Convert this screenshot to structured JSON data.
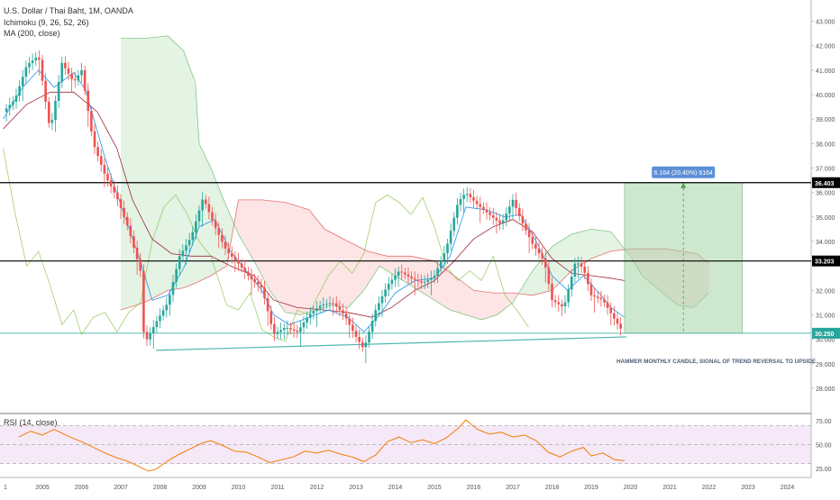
{
  "legend": {
    "symbol": "U.S. Dollar / Thai Baht, 1M, OANDA",
    "ichimoku": "Ichimoku (9, 26, 52, 26)",
    "ma": "MA (200, close)"
  },
  "rsi_legend": "RSI (14, close)",
  "annotations": {
    "measure_label": "6.164 (20.40%) 6164",
    "note": "HAMMER MONTHLY CANDLE, SIGNAL OF TREND REVERSAL TO UPSIDE"
  },
  "colors": {
    "up": "#26a69a",
    "down": "#ef5350",
    "rsi_line": "#f57c00",
    "rsi_band": "#e1bee7",
    "target_box": "#a5d6a7",
    "measure_badge": "#5b8fd6",
    "level_badge": "#000000",
    "support_line": "#4db6ac"
  },
  "chart_data": [
    {
      "type": "candlestick",
      "title": "U.S. Dollar / Thai Baht, 1M, OANDA",
      "x_ticks": [
        "1",
        "2005",
        "2006",
        "2007",
        "2008",
        "2009",
        "2010",
        "2011",
        "2012",
        "2013",
        "2014",
        "2015",
        "2016",
        "2017",
        "2018",
        "2019",
        "2020",
        "2021",
        "2022",
        "2023",
        "2024"
      ],
      "y_ticks": [
        "43.000",
        "42.000",
        "41.000",
        "40.000",
        "39.000",
        "38.000",
        "37.000",
        "36.000",
        "35.000",
        "34.000",
        "32.000",
        "31.000",
        "30.000",
        "29.000",
        "28.000"
      ],
      "ylim": [
        27.3,
        43.5
      ],
      "horizontal_levels": [
        {
          "label": "36.403",
          "value": 36.403,
          "color": "#000000"
        },
        {
          "label": "33.203",
          "value": 33.203,
          "color": "#000000"
        },
        {
          "label": "30.250",
          "value": 30.25,
          "color": "#26a69a"
        }
      ],
      "support_trendline": [
        {
          "year": 2007.9,
          "price": 29.55
        },
        {
          "year": 2019.9,
          "price": 30.1
        }
      ],
      "price_path": [
        [
          2004.0,
          39.3
        ],
        [
          2004.3,
          39.8
        ],
        [
          2004.6,
          41.2
        ],
        [
          2004.9,
          41.6
        ],
        [
          2005.2,
          38.5
        ],
        [
          2005.5,
          41.3
        ],
        [
          2005.8,
          40.5
        ],
        [
          2006.0,
          41.0
        ],
        [
          2006.3,
          38.0
        ],
        [
          2006.6,
          36.7
        ],
        [
          2006.9,
          35.8
        ],
        [
          2007.2,
          34.5
        ],
        [
          2007.5,
          32.8
        ],
        [
          2007.6,
          29.8
        ],
        [
          2007.9,
          30.7
        ],
        [
          2008.2,
          31.5
        ],
        [
          2008.5,
          33.4
        ],
        [
          2008.8,
          34.2
        ],
        [
          2009.1,
          35.8
        ],
        [
          2009.4,
          34.6
        ],
        [
          2009.7,
          33.6
        ],
        [
          2010.0,
          33.1
        ],
        [
          2010.3,
          32.5
        ],
        [
          2010.6,
          32.1
        ],
        [
          2010.9,
          30.2
        ],
        [
          2011.2,
          30.5
        ],
        [
          2011.5,
          30.3
        ],
        [
          2011.8,
          31.0
        ],
        [
          2012.1,
          31.4
        ],
        [
          2012.4,
          31.5
        ],
        [
          2012.7,
          31.0
        ],
        [
          2013.0,
          30.1
        ],
        [
          2013.2,
          29.6
        ],
        [
          2013.5,
          31.2
        ],
        [
          2013.8,
          32.2
        ],
        [
          2014.1,
          32.8
        ],
        [
          2014.4,
          32.5
        ],
        [
          2014.7,
          32.3
        ],
        [
          2015.0,
          32.6
        ],
        [
          2015.3,
          33.7
        ],
        [
          2015.6,
          35.6
        ],
        [
          2015.8,
          36.0
        ],
        [
          2016.1,
          35.5
        ],
        [
          2016.4,
          35.1
        ],
        [
          2016.7,
          34.7
        ],
        [
          2017.0,
          35.7
        ],
        [
          2017.2,
          34.9
        ],
        [
          2017.5,
          33.9
        ],
        [
          2017.8,
          33.2
        ],
        [
          2018.0,
          31.6
        ],
        [
          2018.3,
          31.3
        ],
        [
          2018.6,
          33.2
        ],
        [
          2018.8,
          32.9
        ],
        [
          2019.0,
          31.8
        ],
        [
          2019.3,
          31.6
        ],
        [
          2019.6,
          30.8
        ],
        [
          2019.83,
          30.25
        ]
      ],
      "tenkan": [
        [
          2004.0,
          39.0
        ],
        [
          2004.5,
          40.3
        ],
        [
          2004.9,
          41.0
        ],
        [
          2005.3,
          40.3
        ],
        [
          2005.8,
          40.9
        ],
        [
          2006.1,
          40.2
        ],
        [
          2006.6,
          37.4
        ],
        [
          2007.0,
          35.5
        ],
        [
          2007.5,
          33.2
        ],
        [
          2007.8,
          31.6
        ],
        [
          2008.2,
          31.8
        ],
        [
          2008.6,
          32.9
        ],
        [
          2009.0,
          34.6
        ],
        [
          2009.4,
          34.9
        ],
        [
          2009.8,
          33.6
        ],
        [
          2010.2,
          32.8
        ],
        [
          2010.6,
          32.0
        ],
        [
          2010.9,
          31.0
        ],
        [
          2011.3,
          30.6
        ],
        [
          2011.8,
          30.9
        ],
        [
          2012.3,
          31.2
        ],
        [
          2012.8,
          30.9
        ],
        [
          2013.2,
          30.3
        ],
        [
          2013.6,
          31.0
        ],
        [
          2014.0,
          31.9
        ],
        [
          2014.5,
          32.4
        ],
        [
          2015.0,
          32.5
        ],
        [
          2015.4,
          33.4
        ],
        [
          2015.8,
          35.4
        ],
        [
          2016.3,
          35.3
        ],
        [
          2016.8,
          35.0
        ],
        [
          2017.2,
          35.1
        ],
        [
          2017.6,
          34.0
        ],
        [
          2018.0,
          32.6
        ],
        [
          2018.4,
          32.0
        ],
        [
          2018.8,
          32.6
        ],
        [
          2019.2,
          31.9
        ],
        [
          2019.5,
          31.3
        ],
        [
          2019.85,
          30.9
        ]
      ],
      "kijun": [
        [
          2004.0,
          38.6
        ],
        [
          2004.6,
          39.6
        ],
        [
          2005.2,
          40.1
        ],
        [
          2005.8,
          40.1
        ],
        [
          2006.4,
          39.3
        ],
        [
          2006.9,
          37.8
        ],
        [
          2007.3,
          35.7
        ],
        [
          2007.8,
          34.1
        ],
        [
          2008.3,
          33.5
        ],
        [
          2008.8,
          33.4
        ],
        [
          2009.3,
          33.4
        ],
        [
          2009.8,
          33.0
        ],
        [
          2010.4,
          32.6
        ],
        [
          2010.9,
          31.6
        ],
        [
          2011.5,
          31.3
        ],
        [
          2012.2,
          31.2
        ],
        [
          2012.8,
          31.1
        ],
        [
          2013.4,
          30.9
        ],
        [
          2013.9,
          31.3
        ],
        [
          2014.5,
          32.0
        ],
        [
          2015.0,
          32.4
        ],
        [
          2015.5,
          33.2
        ],
        [
          2016.0,
          34.1
        ],
        [
          2016.5,
          34.6
        ],
        [
          2017.0,
          34.9
        ],
        [
          2017.5,
          34.4
        ],
        [
          2018.0,
          33.3
        ],
        [
          2018.5,
          32.7
        ],
        [
          2019.0,
          32.6
        ],
        [
          2019.5,
          32.5
        ],
        [
          2019.85,
          32.4
        ]
      ],
      "chikou": [
        [
          2004.0,
          37.8
        ],
        [
          2004.3,
          35.2
        ],
        [
          2004.6,
          33.0
        ],
        [
          2004.9,
          33.6
        ],
        [
          2005.2,
          32.2
        ],
        [
          2005.5,
          30.6
        ],
        [
          2005.8,
          31.2
        ],
        [
          2006.0,
          30.2
        ],
        [
          2006.3,
          30.9
        ],
        [
          2006.6,
          31.1
        ],
        [
          2006.9,
          30.3
        ],
        [
          2007.2,
          31.1
        ],
        [
          2007.5,
          31.5
        ],
        [
          2007.8,
          34.0
        ],
        [
          2008.1,
          35.4
        ],
        [
          2008.4,
          35.9
        ],
        [
          2008.7,
          35.1
        ],
        [
          2009.0,
          34.0
        ],
        [
          2009.3,
          33.4
        ],
        [
          2009.7,
          31.4
        ],
        [
          2010.0,
          31.2
        ],
        [
          2010.3,
          31.9
        ],
        [
          2010.6,
          30.4
        ],
        [
          2010.9,
          30.1
        ],
        [
          2011.2,
          29.9
        ],
        [
          2011.5,
          31.2
        ],
        [
          2011.8,
          31.0
        ],
        [
          2012.0,
          31.7
        ],
        [
          2012.3,
          32.6
        ],
        [
          2012.6,
          33.2
        ],
        [
          2012.9,
          32.7
        ],
        [
          2013.2,
          33.5
        ],
        [
          2013.5,
          35.6
        ],
        [
          2013.8,
          35.9
        ],
        [
          2014.1,
          35.6
        ],
        [
          2014.4,
          35.1
        ],
        [
          2014.7,
          35.8
        ],
        [
          2015.0,
          34.6
        ],
        [
          2015.3,
          33.0
        ],
        [
          2015.6,
          32.4
        ],
        [
          2015.9,
          32.8
        ],
        [
          2016.2,
          32.4
        ],
        [
          2016.5,
          33.4
        ],
        [
          2016.8,
          31.8
        ],
        [
          2017.1,
          31.2
        ],
        [
          2017.4,
          30.5
        ]
      ],
      "cloud_span_a": [
        [
          2007.0,
          42.3
        ],
        [
          2007.6,
          42.3
        ],
        [
          2008.2,
          42.4
        ],
        [
          2008.6,
          41.8
        ],
        [
          2008.9,
          40.5
        ],
        [
          2009.0,
          38.0
        ],
        [
          2009.3,
          37.0
        ],
        [
          2009.6,
          35.8
        ],
        [
          2010.0,
          34.3
        ],
        [
          2010.4,
          33.2
        ],
        [
          2010.8,
          32.0
        ],
        [
          2011.2,
          31.1
        ],
        [
          2011.6,
          31.0
        ],
        [
          2012.0,
          31.2
        ],
        [
          2012.4,
          31.4
        ],
        [
          2012.8,
          31.3
        ],
        [
          2013.2,
          32.0
        ],
        [
          2013.6,
          33.0
        ],
        [
          2014.0,
          32.6
        ],
        [
          2014.5,
          32.1
        ],
        [
          2015.0,
          31.6
        ],
        [
          2015.4,
          31.2
        ],
        [
          2015.8,
          31.0
        ],
        [
          2016.2,
          30.8
        ],
        [
          2016.6,
          31.0
        ],
        [
          2017.0,
          31.5
        ],
        [
          2017.5,
          32.8
        ],
        [
          2018.0,
          33.8
        ],
        [
          2018.5,
          34.3
        ],
        [
          2019.0,
          34.5
        ],
        [
          2019.5,
          34.4
        ],
        [
          2020.0,
          33.4
        ],
        [
          2020.3,
          32.6
        ],
        [
          2020.6,
          32.2
        ],
        [
          2020.9,
          31.8
        ],
        [
          2021.2,
          31.4
        ],
        [
          2021.6,
          31.3
        ],
        [
          2022.0,
          31.9
        ]
      ],
      "cloud_span_b": [
        [
          2007.0,
          31.2
        ],
        [
          2007.6,
          31.5
        ],
        [
          2008.2,
          32.0
        ],
        [
          2008.6,
          32.1
        ],
        [
          2008.9,
          32.3
        ],
        [
          2009.3,
          32.6
        ],
        [
          2009.7,
          33.0
        ],
        [
          2010.0,
          35.7
        ],
        [
          2010.6,
          35.7
        ],
        [
          2011.2,
          35.6
        ],
        [
          2011.8,
          35.3
        ],
        [
          2012.2,
          34.5
        ],
        [
          2012.8,
          34.0
        ],
        [
          2013.3,
          33.6
        ],
        [
          2013.8,
          33.4
        ],
        [
          2014.4,
          33.4
        ],
        [
          2015.0,
          33.2
        ],
        [
          2015.5,
          32.6
        ],
        [
          2016.0,
          32.0
        ],
        [
          2016.5,
          31.9
        ],
        [
          2017.0,
          31.9
        ],
        [
          2017.5,
          31.8
        ],
        [
          2018.0,
          32.0
        ],
        [
          2018.5,
          32.8
        ],
        [
          2019.0,
          33.3
        ],
        [
          2019.5,
          33.6
        ],
        [
          2020.0,
          33.7
        ],
        [
          2020.5,
          33.7
        ],
        [
          2020.9,
          33.7
        ],
        [
          2021.3,
          33.6
        ],
        [
          2021.7,
          33.5
        ],
        [
          2022.0,
          33.1
        ]
      ],
      "target_box": {
        "x_start": 2019.85,
        "x_end": 2022.85,
        "y_low": 30.25,
        "y_high": 36.403
      }
    },
    {
      "type": "line",
      "title": "RSI (14, close)",
      "ylim": [
        21,
        78
      ],
      "y_ticks": [
        "75.00",
        "50.00",
        "25.00"
      ],
      "bands": {
        "upper": 70,
        "mid": 50,
        "lower": 30
      },
      "series": [
        {
          "name": "RSI (14, close)",
          "points": [
            [
              2004.4,
              58
            ],
            [
              2004.7,
              64
            ],
            [
              2005.0,
              60
            ],
            [
              2005.3,
              66
            ],
            [
              2005.7,
              58
            ],
            [
              2006.0,
              53
            ],
            [
              2006.3,
              47
            ],
            [
              2006.6,
              41
            ],
            [
              2006.9,
              36
            ],
            [
              2007.2,
              32
            ],
            [
              2007.5,
              26
            ],
            [
              2007.7,
              22
            ],
            [
              2007.9,
              24
            ],
            [
              2008.2,
              33
            ],
            [
              2008.5,
              40
            ],
            [
              2008.8,
              46
            ],
            [
              2009.1,
              52
            ],
            [
              2009.3,
              54
            ],
            [
              2009.6,
              49
            ],
            [
              2009.9,
              43
            ],
            [
              2010.2,
              42
            ],
            [
              2010.5,
              37
            ],
            [
              2010.8,
              31
            ],
            [
              2011.1,
              34
            ],
            [
              2011.4,
              37
            ],
            [
              2011.7,
              43
            ],
            [
              2012.0,
              41
            ],
            [
              2012.3,
              44
            ],
            [
              2012.6,
              40
            ],
            [
              2012.9,
              37
            ],
            [
              2013.2,
              32
            ],
            [
              2013.5,
              39
            ],
            [
              2013.8,
              53
            ],
            [
              2014.1,
              58
            ],
            [
              2014.4,
              52
            ],
            [
              2014.7,
              55
            ],
            [
              2015.0,
              51
            ],
            [
              2015.3,
              57
            ],
            [
              2015.6,
              67
            ],
            [
              2015.8,
              76
            ],
            [
              2016.1,
              66
            ],
            [
              2016.4,
              61
            ],
            [
              2016.7,
              63
            ],
            [
              2017.0,
              58
            ],
            [
              2017.3,
              60
            ],
            [
              2017.6,
              54
            ],
            [
              2017.9,
              42
            ],
            [
              2018.2,
              37
            ],
            [
              2018.5,
              43
            ],
            [
              2018.8,
              47
            ],
            [
              2019.0,
              38
            ],
            [
              2019.3,
              41
            ],
            [
              2019.6,
              34
            ],
            [
              2019.85,
              33
            ]
          ]
        }
      ]
    }
  ]
}
